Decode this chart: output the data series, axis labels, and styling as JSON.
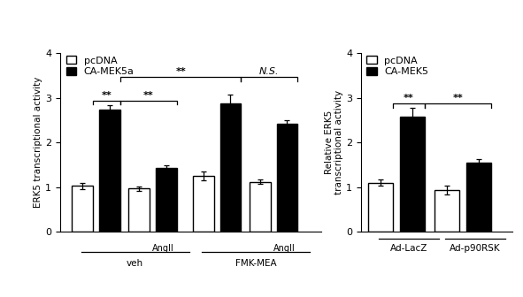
{
  "left_chart": {
    "groups": [
      {
        "label": "veh",
        "bars": [
          {
            "sublabel": "",
            "pcDNA": 1.03,
            "pcDNA_err": 0.07,
            "camek5a": 2.73,
            "camek5a_err": 0.1
          },
          {
            "sublabel": "AngII",
            "pcDNA": 0.97,
            "pcDNA_err": 0.05,
            "camek5a": 1.43,
            "camek5a_err": 0.05
          }
        ]
      },
      {
        "label": "FMK-MEA",
        "bars": [
          {
            "sublabel": "",
            "pcDNA": 1.25,
            "pcDNA_err": 0.1,
            "camek5a": 2.88,
            "camek5a_err": 0.2
          },
          {
            "sublabel": "AngII",
            "pcDNA": 1.12,
            "pcDNA_err": 0.05,
            "camek5a": 2.42,
            "camek5a_err": 0.08
          }
        ]
      }
    ],
    "ylabel": "ERK5 transcriptional activity",
    "ylim": [
      0,
      4
    ],
    "yticks": [
      0,
      1,
      2,
      3,
      4
    ],
    "legend_labels": [
      "pcDNA",
      "CA-MEK5a"
    ],
    "bar_width": 0.28
  },
  "right_chart": {
    "groups": [
      {
        "label": "Ad-LacZ",
        "pcDNA": 1.1,
        "pcDNA_err": 0.07,
        "camek5": 2.58,
        "camek5_err": 0.2
      },
      {
        "label": "Ad-p90RSK",
        "pcDNA": 0.93,
        "pcDNA_err": 0.1,
        "camek5": 1.55,
        "camek5_err": 0.07
      }
    ],
    "ylabel": "Relative ERK5\ntranscriptional activity",
    "ylim": [
      0,
      4
    ],
    "yticks": [
      0,
      1,
      2,
      3,
      4
    ],
    "legend_labels": [
      "pcDNA",
      "CA-MEK5"
    ],
    "bar_width": 0.28
  }
}
